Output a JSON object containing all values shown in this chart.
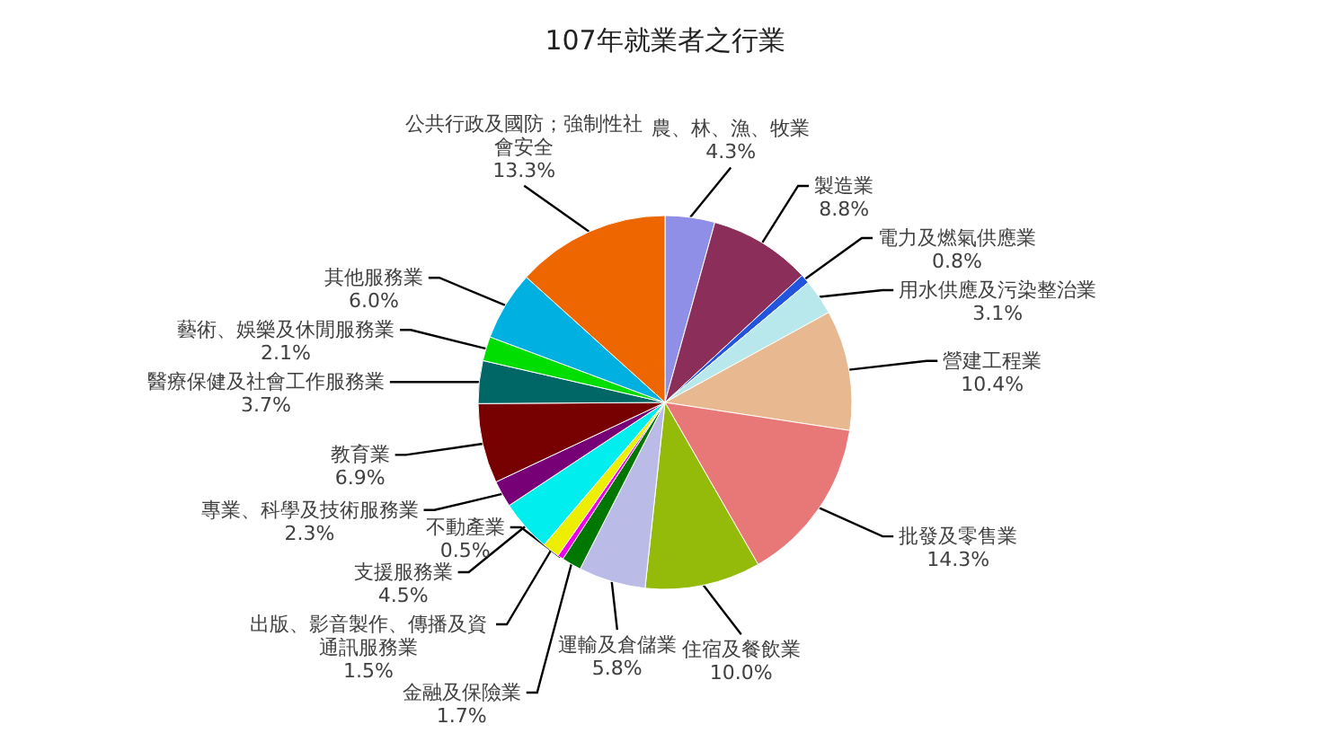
{
  "chart_data": {
    "type": "pie",
    "title": "107年就業者之行業",
    "categories": [
      "農、林、漁、牧業",
      "製造業",
      "電力及燃氣供應業",
      "用水供應及污染整治業",
      "營建工程業",
      "批發及零售業",
      "住宿及餐飲業",
      "運輸及倉儲業",
      "金融及保險業",
      "不動產業",
      "出版、影音製作、傳播及資通訊服務業",
      "支援服務業",
      "專業、科學及技術服務業",
      "教育業",
      "醫療保健及社會工作服務業",
      "藝術、娛樂及休閒服務業",
      "其他服務業",
      "公共行政及國防；強制性社會安全"
    ],
    "values": [
      4.3,
      8.8,
      0.8,
      3.1,
      10.4,
      14.3,
      10.0,
      5.8,
      1.7,
      0.5,
      1.5,
      4.5,
      2.3,
      6.9,
      3.7,
      2.1,
      6.0,
      13.3
    ],
    "value_labels": [
      "4.3%",
      "8.8%",
      "0.8%",
      "3.1%",
      "10.4%",
      "14.3%",
      "10.0%",
      "5.8%",
      "1.7%",
      "0.5%",
      "1.5%",
      "4.5%",
      "2.3%",
      "6.9%",
      "3.7%",
      "2.1%",
      "6.0%",
      "13.3%"
    ],
    "colors": [
      "#8f8fe8",
      "#8b2e5a",
      "#2255dd",
      "#b8e8ec",
      "#e8b890",
      "#e87878",
      "#94bb0a",
      "#bbbbe8",
      "#007700",
      "#ee00ee",
      "#eeee00",
      "#00eeee",
      "#770077",
      "#770000",
      "#006666",
      "#00dd00",
      "#00b0e0",
      "#ee6600"
    ]
  }
}
